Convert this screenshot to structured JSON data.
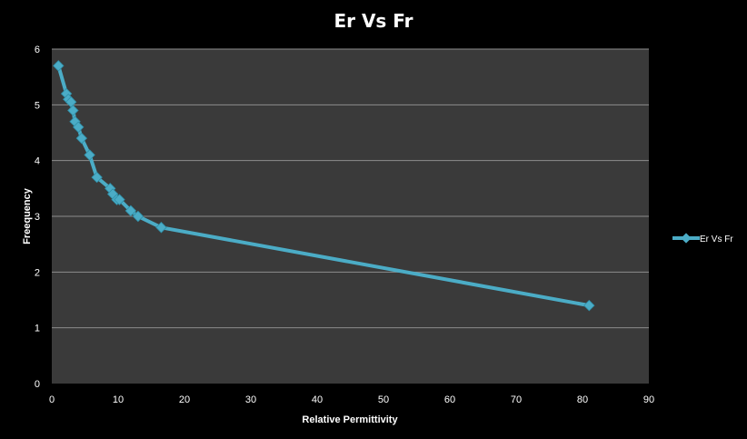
{
  "chart_data": {
    "type": "line",
    "title": "Er Vs Fr",
    "xlabel": "Relative Permittivity",
    "ylabel": "Freequency",
    "xlim": [
      0,
      90
    ],
    "ylim": [
      0,
      6
    ],
    "x_ticks": [
      "0",
      "10",
      "20",
      "30",
      "40",
      "50",
      "60",
      "70",
      "80",
      "90"
    ],
    "y_ticks": [
      "0",
      "1",
      "2",
      "3",
      "4",
      "5",
      "6"
    ],
    "grid": true,
    "legend_position": "right",
    "series": [
      {
        "name": "Er Vs Fr",
        "color": "#4bacc6",
        "marker": "diamond",
        "points": [
          {
            "x": 1.0,
            "y": 5.7
          },
          {
            "x": 2.2,
            "y": 5.2
          },
          {
            "x": 2.5,
            "y": 5.1
          },
          {
            "x": 2.9,
            "y": 5.05
          },
          {
            "x": 3.2,
            "y": 4.9
          },
          {
            "x": 3.5,
            "y": 4.7
          },
          {
            "x": 4.0,
            "y": 4.6
          },
          {
            "x": 4.5,
            "y": 4.4
          },
          {
            "x": 5.7,
            "y": 4.1
          },
          {
            "x": 6.8,
            "y": 3.7
          },
          {
            "x": 8.8,
            "y": 3.5
          },
          {
            "x": 9.2,
            "y": 3.4
          },
          {
            "x": 9.8,
            "y": 3.3
          },
          {
            "x": 10.2,
            "y": 3.3
          },
          {
            "x": 11.9,
            "y": 3.1
          },
          {
            "x": 13.0,
            "y": 3.0
          },
          {
            "x": 16.5,
            "y": 2.8
          },
          {
            "x": 81.0,
            "y": 1.4
          }
        ]
      }
    ]
  }
}
